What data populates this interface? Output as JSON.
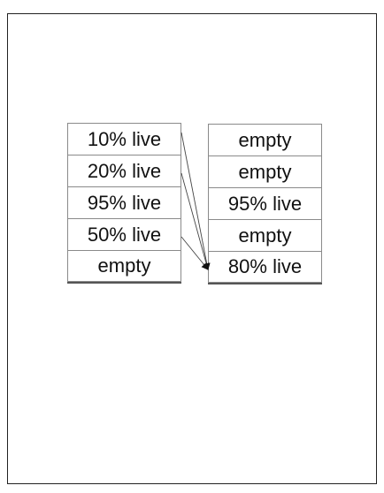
{
  "diagram": {
    "left_column": {
      "cells": [
        "10% live",
        "20% live",
        "95% live",
        "50% live",
        "empty"
      ]
    },
    "right_column": {
      "cells": [
        "empty",
        "empty",
        "95% live",
        "empty",
        "80% live"
      ]
    },
    "arrows": [
      {
        "from": "left_column.cells.0",
        "to": "right_column.cells.4"
      },
      {
        "from": "left_column.cells.1",
        "to": "right_column.cells.4"
      },
      {
        "from": "left_column.cells.3",
        "to": "right_column.cells.4"
      }
    ]
  }
}
